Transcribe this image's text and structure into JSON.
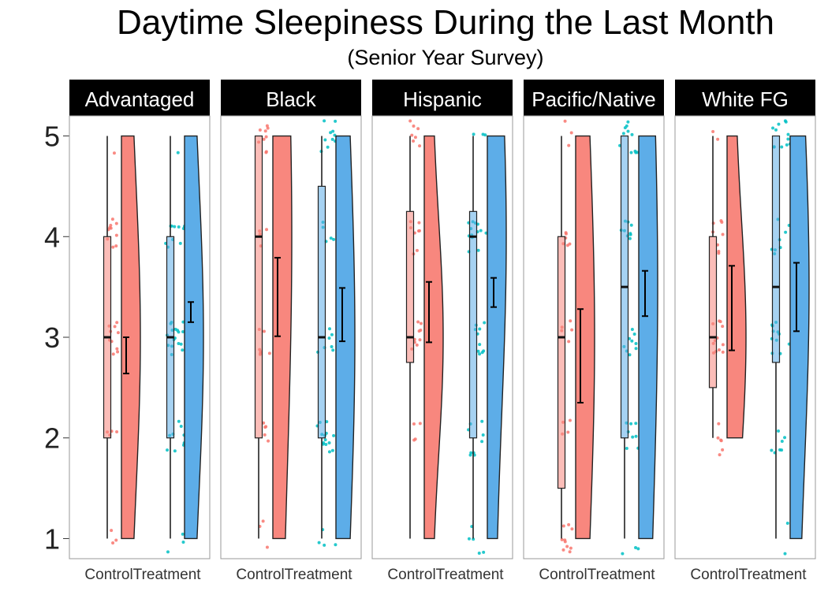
{
  "chart_data": {
    "type": "raincloud",
    "title": "Daytime Sleepiness During the Last Month",
    "subtitle": "(Senior Year Survey)",
    "xlabel": "",
    "ylabel": "",
    "ylim": [
      0.8,
      5.2
    ],
    "y_ticks": [
      1,
      2,
      3,
      4,
      5
    ],
    "grid": false,
    "legend": "none",
    "colors": {
      "Control": "#F8766D",
      "Treatment": "#00BFC4",
      "Control_fill": "#F8877E",
      "Treatment_fill": "#5DADE8"
    },
    "groups": [
      "Control",
      "Treatment"
    ],
    "panels": [
      {
        "name": "Advantaged",
        "boxes": [
          {
            "group": "Control",
            "min": 1,
            "q1": 2,
            "median": 3,
            "q3": 4,
            "max": 5,
            "mean": 2.82,
            "ci": [
              2.64,
              3.0
            ]
          },
          {
            "group": "Treatment",
            "min": 1,
            "q1": 2,
            "median": 3,
            "q3": 4,
            "max": 5,
            "mean": 3.25,
            "ci": [
              3.15,
              3.35
            ]
          }
        ]
      },
      {
        "name": "Black",
        "boxes": [
          {
            "group": "Control",
            "min": 1,
            "q1": 2,
            "median": 4,
            "q3": 5,
            "max": 5,
            "mean": 3.4,
            "ci": [
              3.01,
              3.79
            ]
          },
          {
            "group": "Treatment",
            "min": 1,
            "q1": 2,
            "median": 3,
            "q3": 4.5,
            "max": 5,
            "mean": 3.23,
            "ci": [
              2.96,
              3.49
            ]
          }
        ]
      },
      {
        "name": "Hispanic",
        "boxes": [
          {
            "group": "Control",
            "min": 1,
            "q1": 2.75,
            "median": 3,
            "q3": 4.25,
            "max": 5,
            "mean": 3.25,
            "ci": [
              2.95,
              3.55
            ]
          },
          {
            "group": "Treatment",
            "min": 1,
            "q1": 2,
            "median": 4,
            "q3": 4.25,
            "max": 5,
            "mean": 3.45,
            "ci": [
              3.3,
              3.59
            ]
          }
        ]
      },
      {
        "name": "Pacific/Native",
        "boxes": [
          {
            "group": "Control",
            "min": 1,
            "q1": 1.5,
            "median": 3,
            "q3": 4,
            "max": 5,
            "mean": 2.82,
            "ci": [
              2.35,
              3.28
            ]
          },
          {
            "group": "Treatment",
            "min": 1,
            "q1": 2,
            "median": 3.5,
            "q3": 5,
            "max": 5,
            "mean": 3.43,
            "ci": [
              3.21,
              3.66
            ]
          }
        ]
      },
      {
        "name": "White FG",
        "boxes": [
          {
            "group": "Control",
            "min": 2,
            "q1": 2.5,
            "median": 3,
            "q3": 4,
            "max": 5,
            "mean": 3.29,
            "ci": [
              2.87,
              3.71
            ]
          },
          {
            "group": "Treatment",
            "min": 1,
            "q1": 2.75,
            "median": 3.5,
            "q3": 5,
            "max": 5,
            "mean": 3.4,
            "ci": [
              3.06,
              3.74
            ]
          }
        ]
      }
    ]
  }
}
